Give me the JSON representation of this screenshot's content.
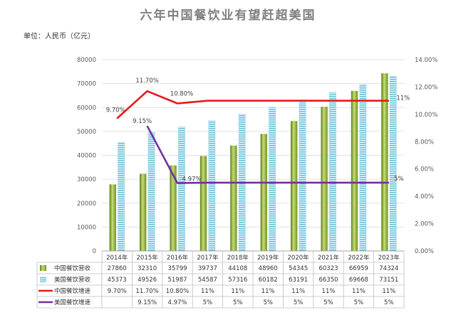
{
  "chart_data": {
    "type": "bar",
    "title": "六年中国餐饮业有望赶超美国",
    "unit_label": "单位：人民币（亿元）",
    "categories": [
      "2014年",
      "2015年",
      "2016年",
      "2017年",
      "2018年",
      "2019年",
      "2020年",
      "2021年",
      "2022年",
      "2023年"
    ],
    "y_left": {
      "min": 0,
      "max": 80000,
      "step": 10000,
      "ticks": [
        "0",
        "10000",
        "20000",
        "30000",
        "40000",
        "50000",
        "60000",
        "70000",
        "80000"
      ]
    },
    "y_right": {
      "min": 0,
      "max": 14,
      "step": 2,
      "ticks": [
        "0.00%",
        "2.00%",
        "4.00%",
        "6.00%",
        "8.00%",
        "10.00%",
        "12.00%",
        "14.00%"
      ]
    },
    "series": [
      {
        "name": "中国餐饮营收",
        "kind": "bar",
        "color": "#8db33a",
        "values": [
          27860,
          32310,
          35799,
          39737,
          44108,
          48960,
          54345,
          60323,
          66959,
          74324
        ],
        "display": [
          "27860",
          "32310",
          "35799",
          "39737",
          "44108",
          "48960",
          "54345",
          "60323",
          "66959",
          "74324"
        ]
      },
      {
        "name": "美国餐饮营收",
        "kind": "bar",
        "color": "#4bacc6",
        "values": [
          45373,
          49526,
          51987,
          54587,
          57316,
          60182,
          63191,
          66350,
          69668,
          73151
        ],
        "display": [
          "45373",
          "49526",
          "51987",
          "54587",
          "57316",
          "60182",
          "63191",
          "66350",
          "69668",
          "73151"
        ]
      },
      {
        "name": "中国餐饮增速",
        "kind": "line",
        "color": "#e41a1c",
        "values": [
          9.7,
          11.7,
          10.8,
          11,
          11,
          11,
          11,
          11,
          11,
          11
        ],
        "display": [
          "9.70%",
          "11.70%",
          "10.80%",
          "11%",
          "11%",
          "11%",
          "11%",
          "11%",
          "11%",
          "11%"
        ]
      },
      {
        "name": "美国餐饮增速",
        "kind": "line",
        "color": "#7030a0",
        "values": [
          null,
          9.15,
          4.97,
          5,
          5,
          5,
          5,
          5,
          5,
          5
        ],
        "display": [
          "",
          "9.15%",
          "4.97%",
          "5%",
          "5%",
          "5%",
          "5%",
          "5%",
          "5%",
          "5%"
        ]
      }
    ],
    "annotations": {
      "cn_growth": [
        {
          "index": 0,
          "text": "9.70%"
        },
        {
          "index": 1,
          "text": "11.70%"
        },
        {
          "index": 2,
          "text": "10.80%"
        },
        {
          "index": 9,
          "text": "11%"
        }
      ],
      "us_growth": [
        {
          "index": 1,
          "text": "9.15%"
        },
        {
          "index": 2,
          "text": "4.97%"
        },
        {
          "index": 9,
          "text": "5%"
        }
      ]
    }
  }
}
